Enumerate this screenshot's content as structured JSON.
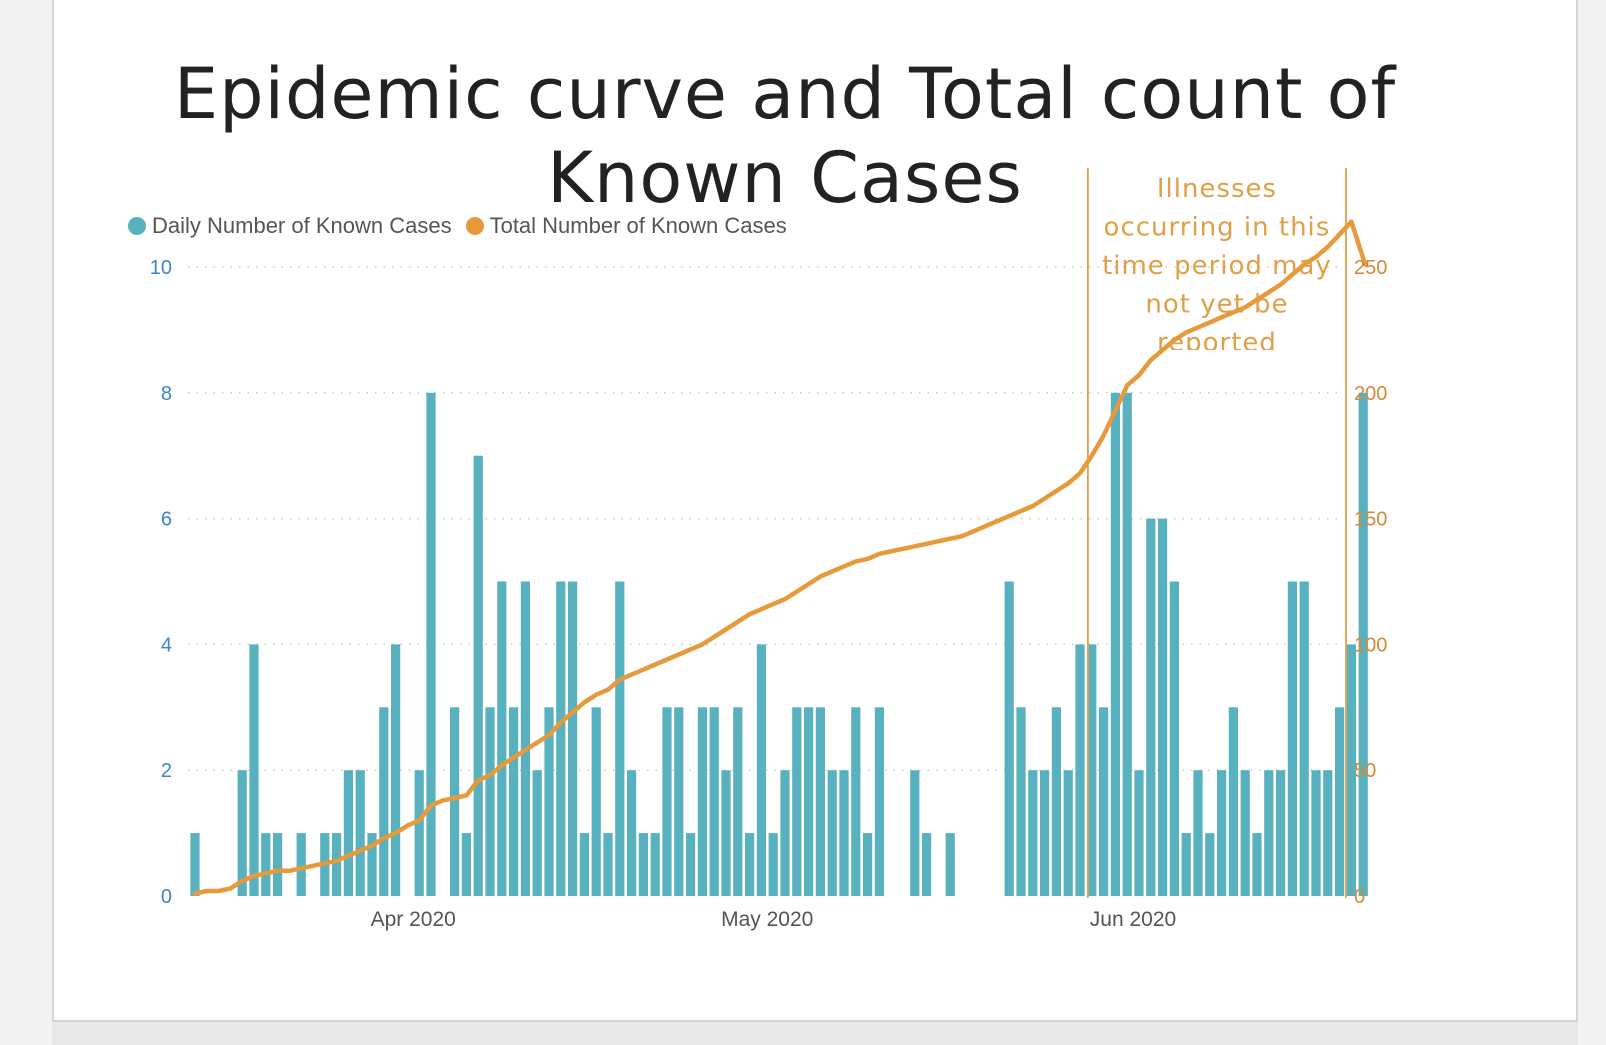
{
  "title": "Epidemic curve and Total count of Known Cases",
  "colors": {
    "bars": "#57b1be",
    "line": "#e69a3c",
    "left_axis": "#3d86c6",
    "right_axis": "#d8873a",
    "annotation": "#e0a04a"
  },
  "legend": {
    "daily_label": "Daily Number of Known Cases",
    "total_label": "Total Number of Known Cases"
  },
  "annotation": {
    "lines": [
      "Illnesses",
      "occurring in this",
      "time period may",
      "not yet be",
      "reported"
    ]
  },
  "chart_data": {
    "type": "bar+line",
    "title": "Epidemic curve and Total count of Known Cases",
    "x_start_date": "2020-03-13",
    "x_tick_labels": [
      {
        "label": "Apr 2020",
        "day_index": 19
      },
      {
        "label": "May 2020",
        "day_index": 49
      },
      {
        "label": "Jun 2020",
        "day_index": 80
      }
    ],
    "left_axis": {
      "label": "Daily Number of Known Cases",
      "ylim": [
        0,
        10
      ],
      "ticks": [
        0,
        2,
        4,
        6,
        8,
        10
      ]
    },
    "right_axis": {
      "label": "Total Number of Known Cases",
      "ylim": [
        0,
        250
      ],
      "ticks": [
        0,
        50,
        100,
        150,
        200,
        250
      ]
    },
    "annotation_range_day_index": [
      75.5,
      99
    ],
    "series": [
      {
        "name": "Daily Number of Known Cases",
        "type": "bar",
        "axis": "left",
        "values": [
          1,
          0,
          0,
          0,
          2,
          4,
          1,
          1,
          0,
          1,
          0,
          1,
          1,
          2,
          2,
          1,
          3,
          4,
          0,
          2,
          8,
          0,
          3,
          1,
          7,
          3,
          5,
          3,
          5,
          2,
          3,
          5,
          5,
          1,
          3,
          1,
          5,
          2,
          1,
          1,
          3,
          3,
          1,
          3,
          3,
          2,
          3,
          1,
          4,
          1,
          2,
          3,
          3,
          3,
          2,
          2,
          3,
          1,
          3,
          0,
          0,
          2,
          1,
          0,
          1,
          0,
          0,
          0,
          0,
          5,
          3,
          2,
          2,
          3,
          2,
          4,
          4,
          3,
          8,
          8,
          2,
          6,
          6,
          5,
          1,
          2,
          1,
          2,
          3,
          2,
          1,
          2,
          2,
          5,
          5,
          2,
          2,
          3,
          4,
          8
        ]
      },
      {
        "name": "Total Number of Known Cases",
        "type": "line",
        "axis": "right",
        "values": [
          1,
          2,
          2,
          3,
          6,
          8,
          9,
          10,
          10,
          11,
          12,
          13,
          14,
          16,
          18,
          20,
          23,
          25,
          28,
          30,
          36,
          38,
          39,
          40,
          46,
          48,
          52,
          55,
          58,
          61,
          64,
          69,
          73,
          77,
          80,
          82,
          86,
          88,
          90,
          92,
          94,
          96,
          98,
          100,
          103,
          106,
          109,
          112,
          114,
          116,
          118,
          121,
          124,
          127,
          129,
          131,
          133,
          134,
          136,
          137,
          138,
          139,
          140,
          141,
          142,
          143,
          145,
          147,
          149,
          151,
          153,
          155,
          158,
          161,
          164,
          168,
          175,
          183,
          193,
          203,
          207,
          213,
          217,
          221,
          224,
          226,
          228,
          230,
          232,
          234,
          237,
          240,
          243,
          247,
          251,
          254,
          258,
          263,
          268,
          250
        ]
      }
    ]
  }
}
